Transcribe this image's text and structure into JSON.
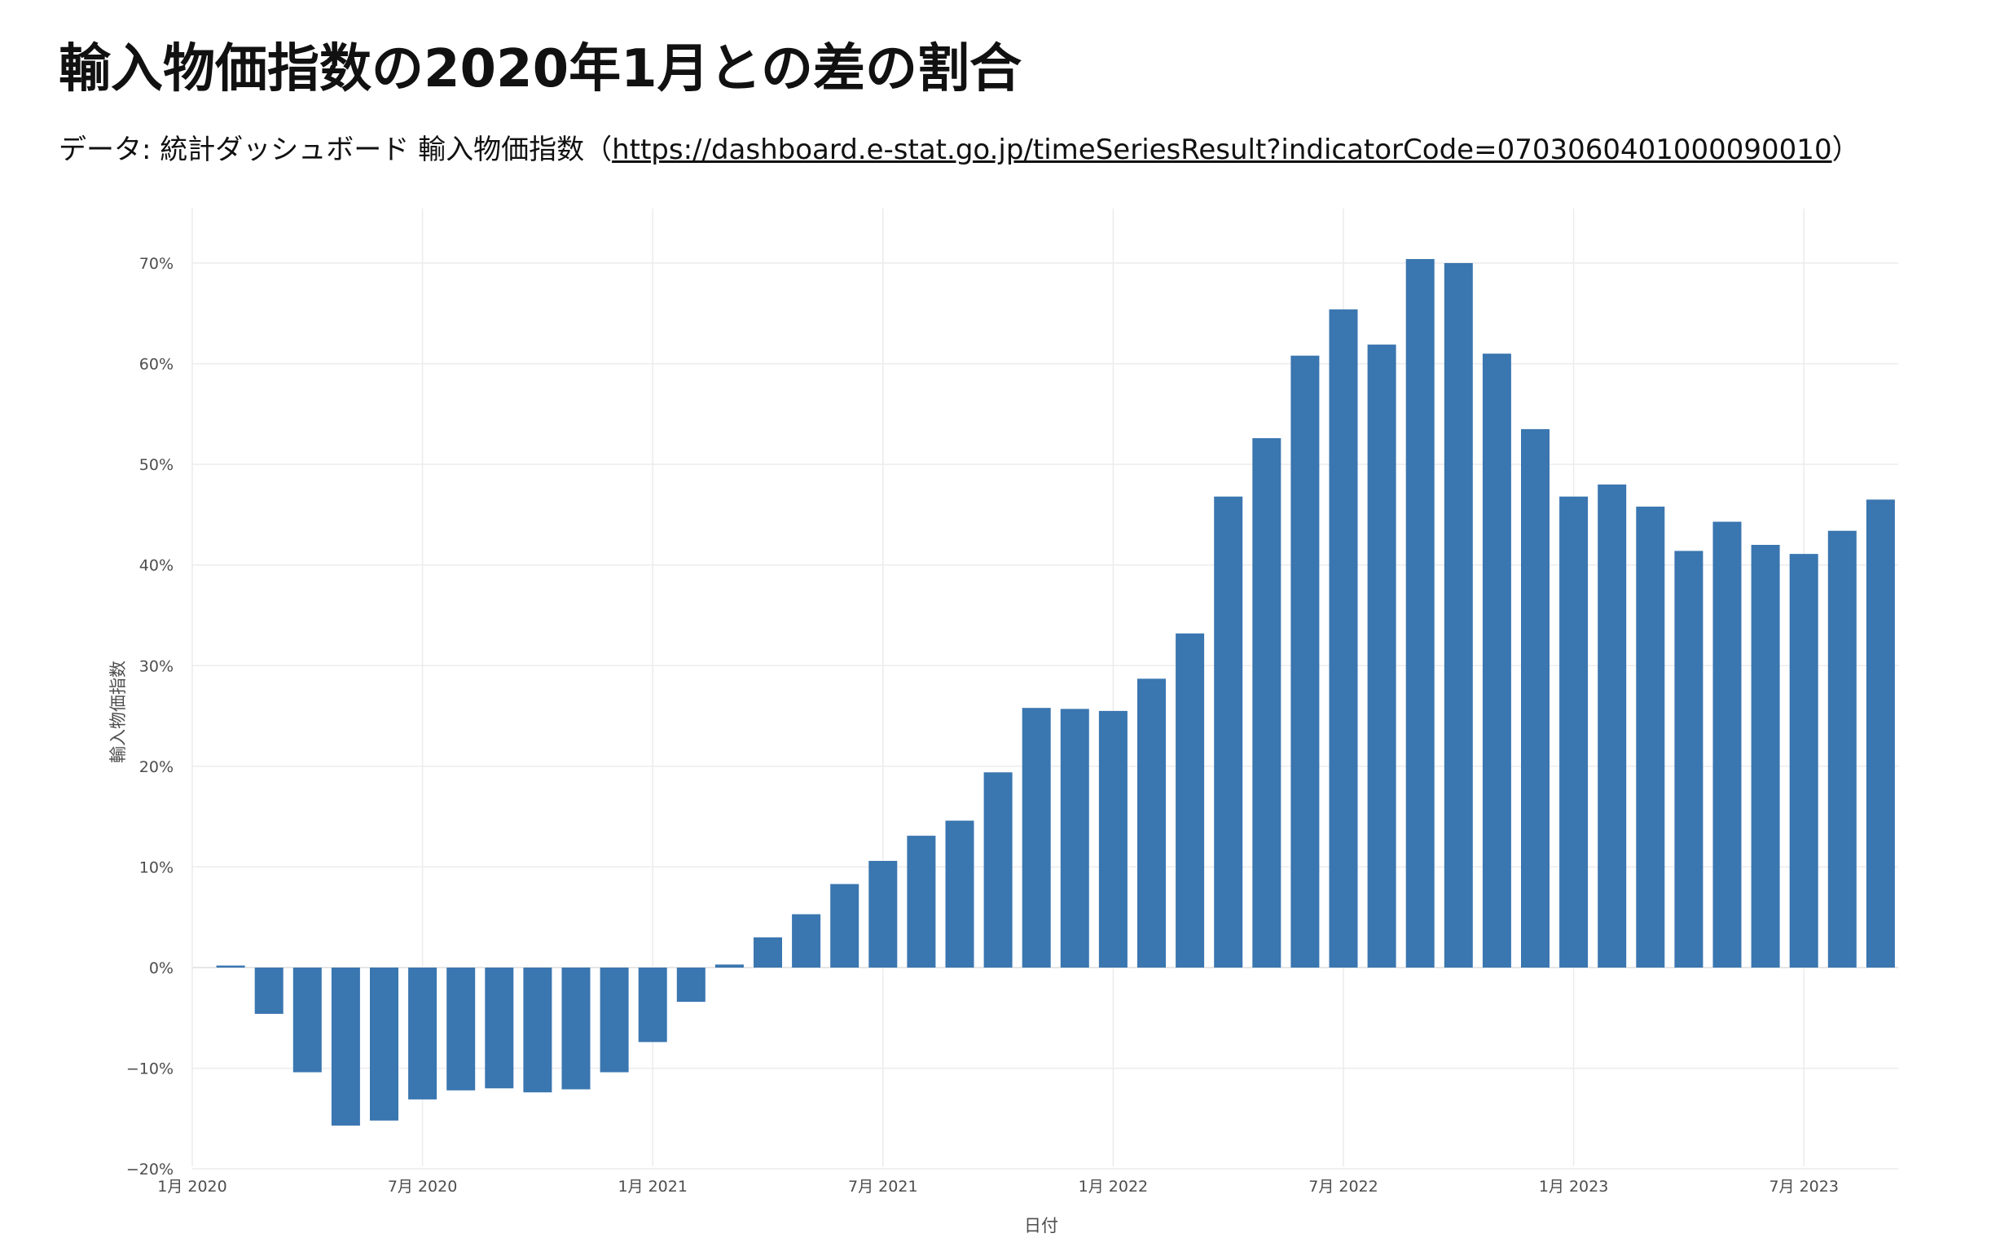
{
  "title": "輸入物価指数の2020年1月との差の割合",
  "subtitle": {
    "prefix": "データ: 統計ダッシュボード 輸入物価指数（",
    "link_text": "https://dashboard.e-stat.go.jp/timeSeriesResult?indicatorCode=0703060401000090010",
    "suffix": "）"
  },
  "chart_data": {
    "type": "bar",
    "title": "輸入物価指数の2020年1月との差の割合",
    "xlabel": "日付",
    "ylabel": "輸入物価指数",
    "ylim": [
      -20,
      75
    ],
    "yticks": [
      -20,
      -10,
      0,
      10,
      20,
      30,
      40,
      50,
      60,
      70
    ],
    "ytick_labels": [
      "−20%",
      "−10%",
      "0%",
      "10%",
      "20%",
      "30%",
      "40%",
      "50%",
      "60%",
      "70%"
    ],
    "xtick_labels": [
      "1月 2020",
      "7月 2020",
      "1月 2021",
      "7月 2021",
      "1月 2022",
      "7月 2022",
      "1月 2023",
      "7月 2023"
    ],
    "xtick_months": [
      0,
      6,
      12,
      18,
      24,
      30,
      36,
      42
    ],
    "categories": [
      "2020-01",
      "2020-02",
      "2020-03",
      "2020-04",
      "2020-05",
      "2020-06",
      "2020-07",
      "2020-08",
      "2020-09",
      "2020-10",
      "2020-11",
      "2020-12",
      "2021-01",
      "2021-02",
      "2021-03",
      "2021-04",
      "2021-05",
      "2021-06",
      "2021-07",
      "2021-08",
      "2021-09",
      "2021-10",
      "2021-11",
      "2021-12",
      "2022-01",
      "2022-02",
      "2022-03",
      "2022-04",
      "2022-05",
      "2022-06",
      "2022-07",
      "2022-08",
      "2022-09",
      "2022-10",
      "2022-11",
      "2022-12",
      "2023-01",
      "2023-02",
      "2023-03",
      "2023-04",
      "2023-05",
      "2023-06",
      "2023-07",
      "2023-08",
      "2023-09"
    ],
    "values": [
      0.0,
      0.2,
      -4.6,
      -10.4,
      -15.7,
      -15.2,
      -13.1,
      -12.2,
      -12.0,
      -12.4,
      -12.1,
      -10.4,
      -7.4,
      -3.4,
      0.3,
      3.0,
      5.3,
      8.3,
      10.6,
      13.1,
      14.6,
      19.4,
      25.8,
      25.7,
      25.5,
      28.7,
      33.2,
      46.8,
      52.6,
      60.8,
      65.4,
      61.9,
      70.4,
      70.0,
      61.0,
      53.5,
      46.8,
      48.0,
      45.8,
      41.4,
      44.3,
      42.0,
      41.1,
      43.4,
      46.5
    ],
    "bar_color": "#3a76b0",
    "grid": true
  }
}
